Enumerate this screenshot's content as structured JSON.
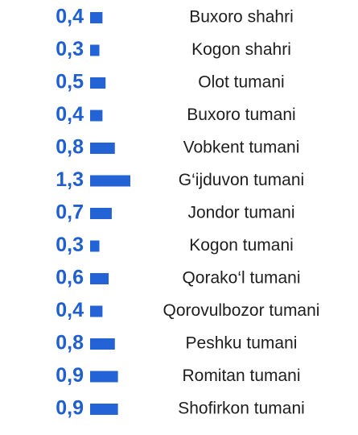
{
  "chart_data": {
    "type": "bar",
    "orientation": "horizontal",
    "color": "#2363d6",
    "categories": [
      "Buxoro shahri",
      "Kogon shahri",
      "Olot tumani",
      "Buxoro tumani",
      "Vobkent tumani",
      "G‘ijduvon tumani",
      "Jondor tumani",
      "Kogon tumani",
      "Qorako‘l tumani",
      "Qorovulbozor tumani",
      "Peshku tumani",
      "Romitan tumani",
      "Shofirkon tumani"
    ],
    "values": [
      0.4,
      0.3,
      0.5,
      0.4,
      0.8,
      1.3,
      0.7,
      0.3,
      0.6,
      0.4,
      0.8,
      0.9,
      0.9
    ],
    "value_labels": [
      "0,4",
      "0,3",
      "0,5",
      "0,4",
      "0,8",
      "1,3",
      "0,7",
      "0,3",
      "0,6",
      "0,4",
      "0,8",
      "0,9",
      "0,9"
    ]
  }
}
